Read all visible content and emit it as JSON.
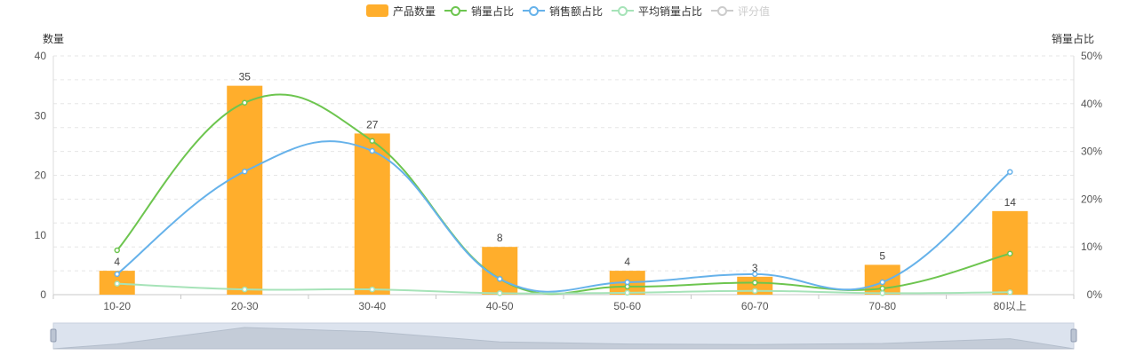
{
  "legend": [
    {
      "label": "产品数量",
      "type": "bar",
      "color": "#FFAE2C",
      "enabled": true
    },
    {
      "label": "销量占比",
      "type": "line",
      "color": "#6DC54F",
      "enabled": true
    },
    {
      "label": "销售额占比",
      "type": "line",
      "color": "#66B2EA",
      "enabled": true
    },
    {
      "label": "平均销量占比",
      "type": "line",
      "color": "#A6E3B8",
      "enabled": true
    },
    {
      "label": "评分值",
      "type": "line",
      "color": "#CCCCCC",
      "enabled": false
    }
  ],
  "chart_data": {
    "type": "bar",
    "categories": [
      "10-20",
      "20-30",
      "30-40",
      "40-50",
      "50-60",
      "60-70",
      "70-80",
      "80以上"
    ],
    "y_left": {
      "name": "数量",
      "min": 0,
      "max": 40,
      "ticks": [
        "0",
        "10",
        "20",
        "30",
        "40"
      ]
    },
    "y_right": {
      "name": "销量占比",
      "min": 0,
      "max": 50,
      "ticks": [
        "0%",
        "10%",
        "20%",
        "30%",
        "40%",
        "50%"
      ]
    },
    "grid": true,
    "legend_position": "top-center",
    "series": [
      {
        "name": "产品数量",
        "type": "bar",
        "axis": "left",
        "color": "#FFAE2C",
        "values": [
          4,
          35,
          27,
          8,
          4,
          3,
          5,
          14
        ],
        "labels": [
          "4",
          "35",
          "27",
          "8",
          "4",
          "3",
          "5",
          "14"
        ]
      },
      {
        "name": "销量占比",
        "type": "line",
        "axis": "right",
        "color": "#6DC54F",
        "values": [
          9.3,
          40.2,
          32.2,
          3.3,
          1.7,
          2.5,
          1.3,
          8.6
        ]
      },
      {
        "name": "销售额占比",
        "type": "line",
        "axis": "right",
        "color": "#66B2EA",
        "values": [
          4.3,
          25.8,
          30.1,
          3.3,
          2.6,
          4.3,
          2.6,
          25.7
        ]
      },
      {
        "name": "平均销量占比",
        "type": "line",
        "axis": "right",
        "color": "#A6E3B8",
        "values": [
          2.3,
          1.1,
          1.1,
          0.3,
          0.4,
          0.8,
          0.3,
          0.5
        ]
      }
    ],
    "datazoom": {
      "start": 0,
      "end": 100,
      "preview_values": [
        4,
        35,
        27,
        8,
        4,
        3,
        5,
        14
      ]
    }
  }
}
